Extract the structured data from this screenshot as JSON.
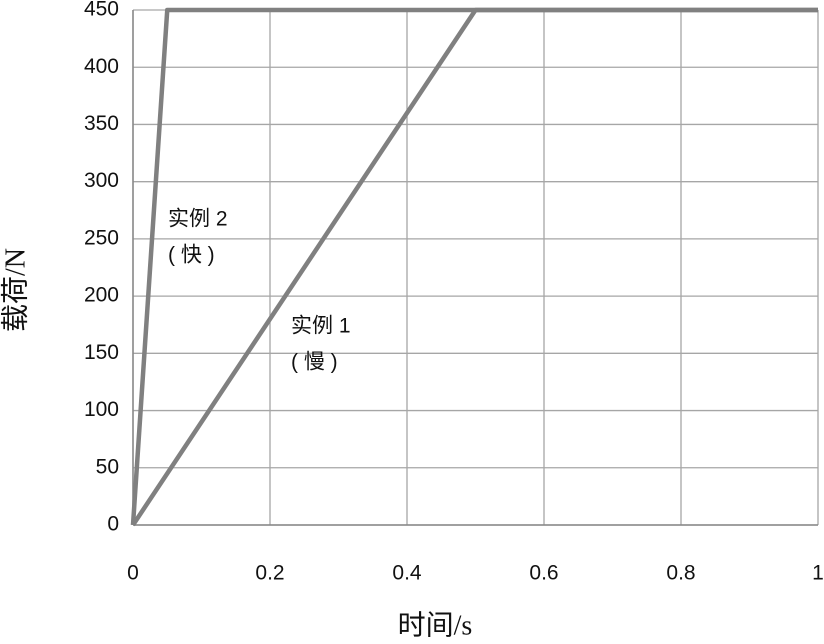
{
  "chart_data": {
    "type": "line",
    "xlabel": "时间/s",
    "ylabel": "载荷/N",
    "xlim": [
      0,
      1
    ],
    "xticks": [
      0,
      0.2,
      0.4,
      0.6,
      0.8,
      1
    ],
    "ylim": [
      0,
      450
    ],
    "yticks": [
      0,
      50,
      100,
      150,
      200,
      250,
      300,
      350,
      400,
      450
    ],
    "grid": true,
    "series": [
      {
        "name": "实例 1",
        "note": "( 慢 )",
        "color": "#808080",
        "x": [
          0,
          0.5,
          1
        ],
        "values": [
          0,
          450,
          450
        ]
      },
      {
        "name": "实例 2",
        "note": "( 快 )",
        "color": "#808080",
        "x": [
          0,
          0.05,
          1
        ],
        "values": [
          0,
          450,
          450
        ]
      }
    ]
  }
}
